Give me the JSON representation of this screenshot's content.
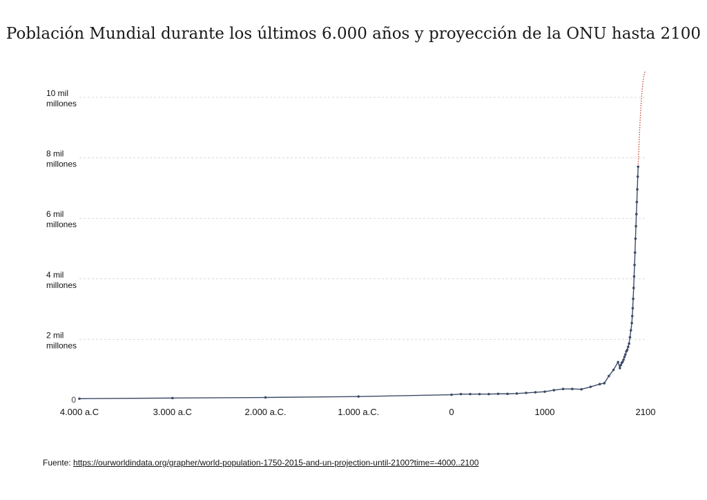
{
  "title": "Población Mundial durante los últimos 6.000 años y proyección de la ONU hasta 2100",
  "source": {
    "prefix": "Fuente: ",
    "url": "https://ourworldindata.org/grapher/world-population-1750-2015-and-un-projection-until-2100?time=-4000..2100"
  },
  "colors": {
    "historical": "#3b4a66",
    "projection": "#c8402a",
    "grid": "#d8d8d8",
    "text": "#111111"
  },
  "chart_data": {
    "type": "line",
    "title": "Población Mundial durante los últimos 6.000 años y proyección de la ONU hasta 2100",
    "xlabel": "",
    "ylabel": "",
    "xlim": [
      -4000,
      2100
    ],
    "ylim": [
      0,
      11000000000
    ],
    "grid": true,
    "x_ticks": [
      {
        "value": -4000,
        "label": "4.000 a.C"
      },
      {
        "value": -3000,
        "label": "3.000 a.C"
      },
      {
        "value": -2000,
        "label": "2.000 a.C."
      },
      {
        "value": -1000,
        "label": "1.000 a.C."
      },
      {
        "value": 0,
        "label": "0"
      },
      {
        "value": 1000,
        "label": "1000"
      },
      {
        "value": 2100,
        "label": "2100"
      }
    ],
    "y_ticks": [
      {
        "value": 0,
        "label": [
          "0"
        ]
      },
      {
        "value": 2000000000,
        "label": [
          "2 mil",
          "millones"
        ]
      },
      {
        "value": 4000000000,
        "label": [
          "4 mil",
          "millones"
        ]
      },
      {
        "value": 6000000000,
        "label": [
          "6 mil",
          "millones"
        ]
      },
      {
        "value": 8000000000,
        "label": [
          "8 mil",
          "millones"
        ]
      },
      {
        "value": 10000000000,
        "label": [
          "10 mil",
          "millones"
        ]
      }
    ],
    "series": [
      {
        "key": "historical",
        "style": "solid-with-markers",
        "x": [
          -4000,
          -3000,
          -2000,
          -1000,
          0,
          100,
          200,
          300,
          400,
          500,
          600,
          700,
          800,
          900,
          1000,
          1100,
          1200,
          1300,
          1400,
          1500,
          1600,
          1650,
          1700,
          1750,
          1800,
          1820,
          1830,
          1840,
          1850,
          1860,
          1870,
          1880,
          1890,
          1900,
          1910,
          1920,
          1930,
          1940,
          1950,
          1955,
          1960,
          1965,
          1970,
          1975,
          1980,
          1985,
          1990,
          1995,
          2000,
          2005,
          2010,
          2015,
          2019
        ],
        "y": [
          40000000,
          60000000,
          80000000,
          110000000,
          170000000,
          190000000,
          190000000,
          190000000,
          190000000,
          200000000,
          200000000,
          210000000,
          230000000,
          250000000,
          270000000,
          320000000,
          360000000,
          360000000,
          350000000,
          430000000,
          520000000,
          550000000,
          790000000,
          990000000,
          1250000000,
          1050000000,
          1150000000,
          1220000000,
          1260000000,
          1330000000,
          1420000000,
          1500000000,
          1600000000,
          1650000000,
          1750000000,
          1860000000,
          2070000000,
          2300000000,
          2540000000,
          2770000000,
          3030000000,
          3340000000,
          3700000000,
          4080000000,
          4460000000,
          4870000000,
          5330000000,
          5740000000,
          6140000000,
          6540000000,
          6960000000,
          7380000000,
          7710000000
        ]
      },
      {
        "key": "projection",
        "style": "dotted",
        "x": [
          2019,
          2025,
          2030,
          2040,
          2050,
          2060,
          2070,
          2080,
          2090,
          2100
        ],
        "y": [
          7710000000,
          8180000000,
          8550000000,
          9200000000,
          9740000000,
          10150000000,
          10450000000,
          10680000000,
          10820000000,
          10880000000
        ]
      }
    ]
  }
}
